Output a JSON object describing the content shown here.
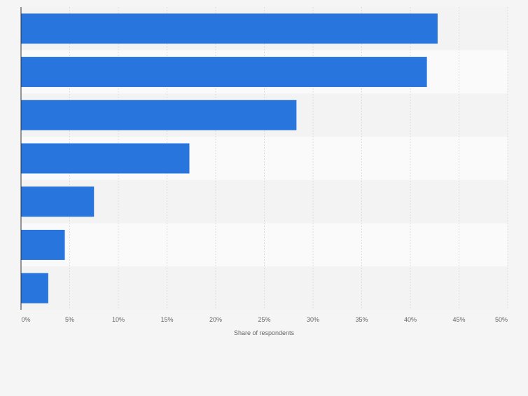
{
  "chart_data": {
    "type": "bar",
    "orientation": "horizontal",
    "categories": [
      "",
      "",
      "",
      "",
      "",
      "",
      ""
    ],
    "values": [
      42.8,
      41.7,
      28.3,
      17.3,
      7.5,
      4.5,
      2.8
    ],
    "title": "",
    "xlabel": "Share of respondents",
    "ylabel": "",
    "xlim": [
      0,
      50
    ],
    "xticks": [
      0,
      5,
      10,
      15,
      20,
      25,
      30,
      35,
      40,
      45,
      50
    ],
    "tick_labels": [
      "0%",
      "5%",
      "10%",
      "15%",
      "20%",
      "25%",
      "30%",
      "35%",
      "40%",
      "45%",
      "50%"
    ],
    "grid": true,
    "legend": "none",
    "colors": {
      "bar": "#2876dd",
      "band_dark": "#f3f3f3",
      "band_light": "#fafafa",
      "grid": "#dddddd",
      "axis": "#333333",
      "text": "#666666"
    }
  }
}
